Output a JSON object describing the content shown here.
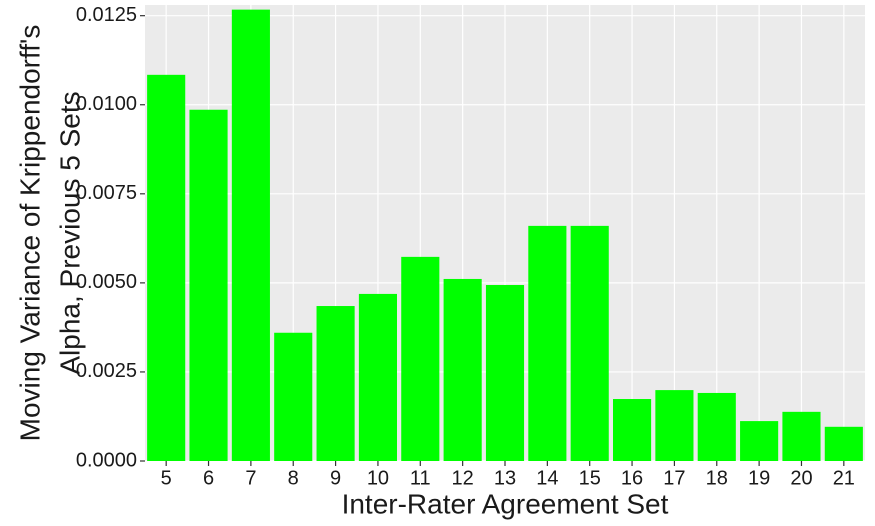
{
  "chart_data": {
    "type": "bar",
    "x_label": "Inter-Rater Agreement Set",
    "y_label": [
      "Moving Variance of Krippendorff's",
      "Alpha, Previous 5 Sets"
    ],
    "categories": [
      "5",
      "6",
      "7",
      "8",
      "9",
      "10",
      "11",
      "12",
      "13",
      "14",
      "15",
      "16",
      "17",
      "18",
      "19",
      "20",
      "21"
    ],
    "values": [
      0.01084,
      0.00986,
      0.01267,
      0.0036,
      0.00435,
      0.00469,
      0.00573,
      0.00511,
      0.00494,
      0.0066,
      0.0066,
      0.00174,
      0.00199,
      0.00191,
      0.00112,
      0.00138,
      0.00096
    ],
    "color": "#00ff00",
    "ylim": [
      0,
      0.0128
    ],
    "yticks": [
      {
        "value": 0,
        "label": "0.0000"
      },
      {
        "value": 0.0025,
        "label": "0.0025"
      },
      {
        "value": 0.005,
        "label": "0.0050"
      },
      {
        "value": 0.0075,
        "label": "0.0075"
      },
      {
        "value": 0.01,
        "label": "0.0100"
      },
      {
        "value": 0.0125,
        "label": "0.0125"
      }
    ],
    "grid": true
  }
}
